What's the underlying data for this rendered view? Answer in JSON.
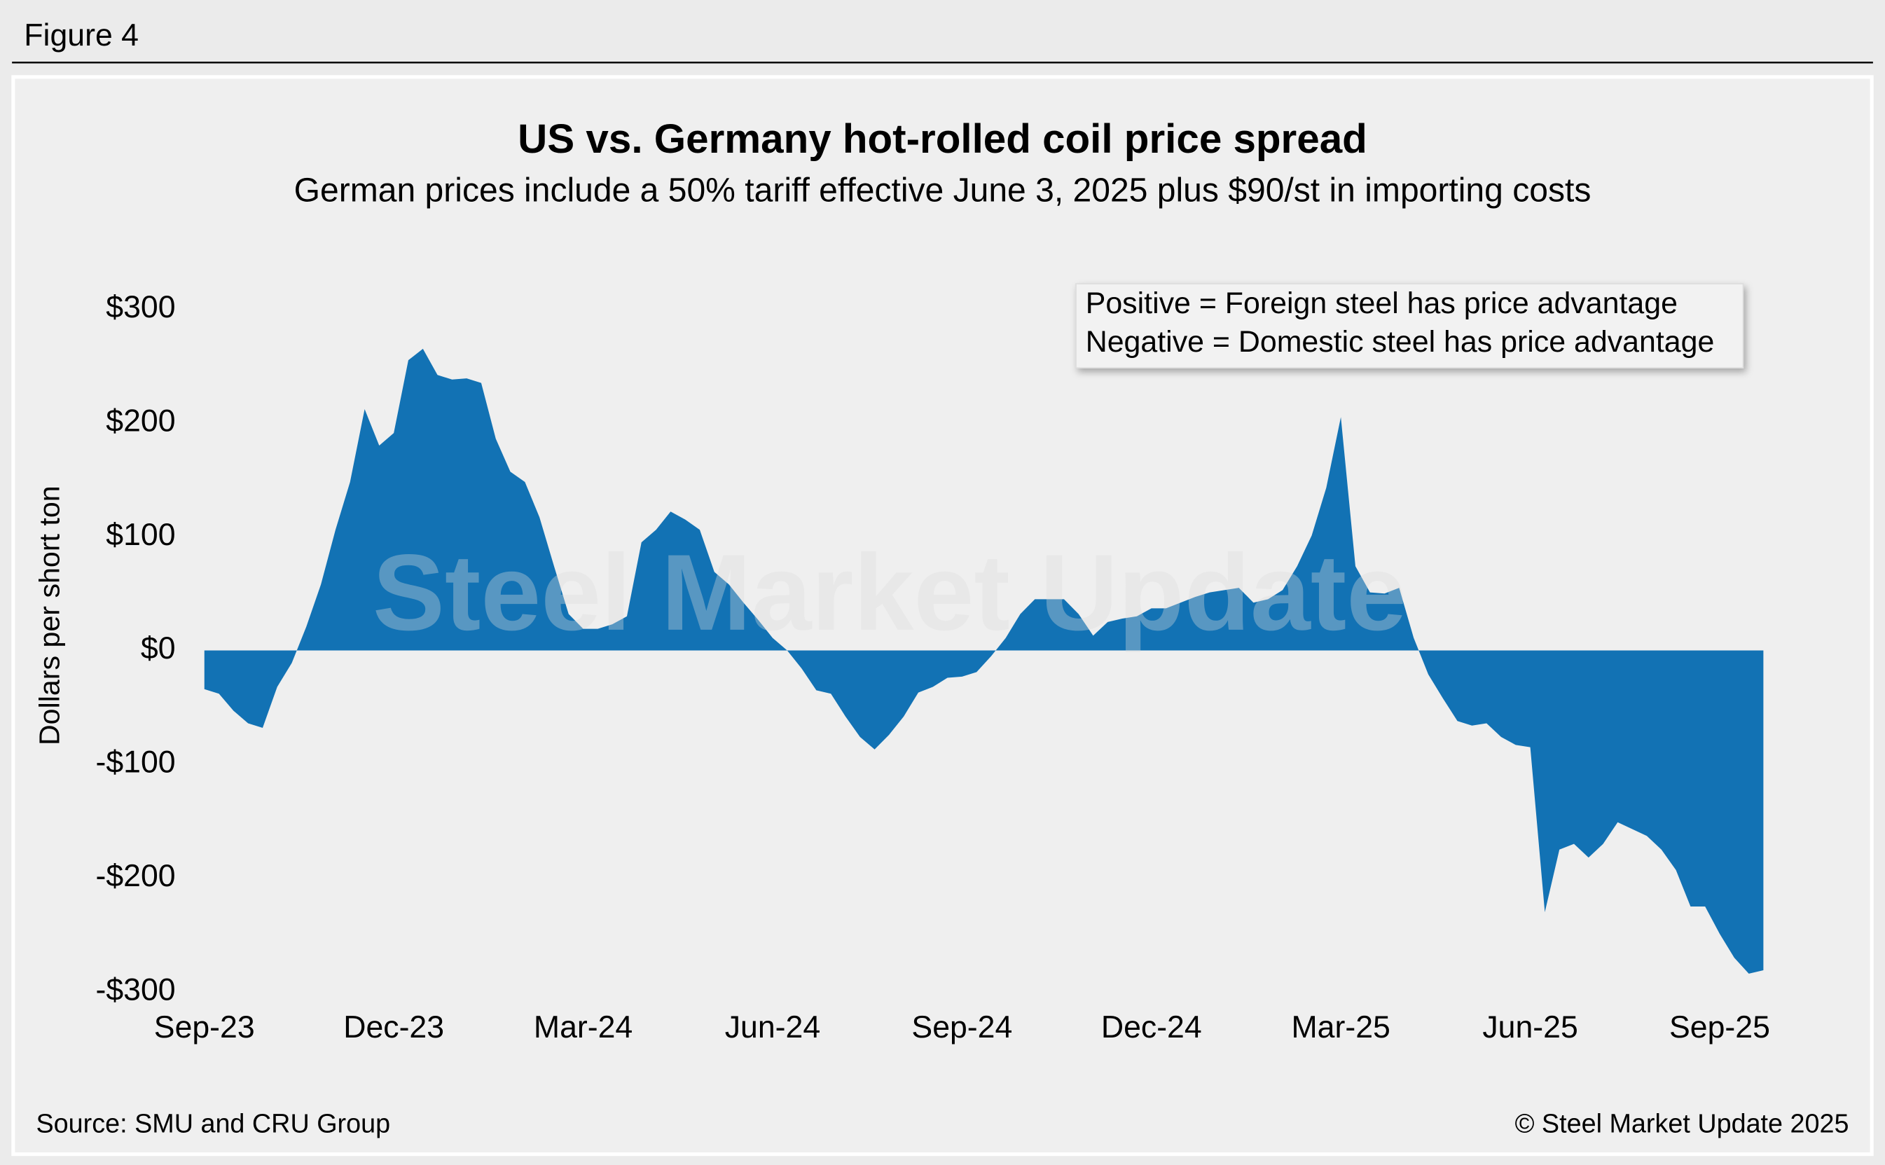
{
  "header": "Figure 4",
  "chart_data": {
    "type": "area",
    "title": "US vs. Germany hot-rolled coil price spread",
    "subtitle": "German prices include a 50% tariff effective June 3, 2025 plus $90/st in importing costs",
    "ylabel": "Dollars per short ton",
    "annotations": [
      "Positive = Foreign steel has price advantage",
      "Negative = Domestic steel has price advantage"
    ],
    "watermark": "Steel Market Update",
    "color": "#1272b4",
    "categories": [
      "Sep-23",
      null,
      null,
      null,
      null,
      null,
      null,
      null,
      null,
      null,
      null,
      null,
      null,
      "Dec-23",
      null,
      null,
      null,
      null,
      null,
      null,
      null,
      null,
      null,
      null,
      null,
      null,
      "Mar-24",
      null,
      null,
      null,
      null,
      null,
      null,
      null,
      null,
      null,
      null,
      null,
      null,
      "Jun-24",
      null,
      null,
      null,
      null,
      null,
      null,
      null,
      null,
      null,
      null,
      null,
      null,
      "Sep-24",
      null,
      null,
      null,
      null,
      null,
      null,
      null,
      null,
      null,
      null,
      null,
      null,
      "Dec-24",
      null,
      null,
      null,
      null,
      null,
      null,
      null,
      null,
      null,
      null,
      null,
      null,
      "Mar-25",
      null,
      null,
      null,
      null,
      null,
      null,
      null,
      null,
      null,
      null,
      null,
      null,
      "Jun-25",
      null,
      null,
      null,
      null,
      null,
      null,
      null,
      null,
      null,
      null,
      null,
      null,
      "Sep-25",
      null,
      null,
      null
    ],
    "values": [
      -34,
      -38,
      -53,
      -64,
      -68,
      -32,
      -11,
      21,
      58,
      106,
      148,
      212,
      180,
      191,
      255,
      265,
      242,
      238,
      239,
      235,
      186,
      157,
      148,
      117,
      74,
      32,
      19,
      19,
      23,
      30,
      95,
      106,
      122,
      115,
      106,
      69,
      58,
      42,
      27,
      11,
      0,
      -16,
      -35,
      -38,
      -58,
      -76,
      -87,
      -74,
      -58,
      -37,
      -32,
      -24,
      -23,
      -19,
      -5,
      11,
      32,
      45,
      45,
      45,
      32,
      13,
      25,
      28,
      30,
      37,
      37,
      42,
      47,
      51,
      53,
      55,
      42,
      45,
      53,
      74,
      101,
      143,
      205,
      74,
      51,
      50,
      55,
      11,
      -21,
      -42,
      -62,
      -66,
      -64,
      -76,
      -83,
      -85,
      -230,
      -175,
      -170,
      -182,
      -170,
      -151,
      -157,
      -163,
      -175,
      -193,
      -225,
      -225,
      -249,
      -270,
      -284,
      -281
    ],
    "ylim": [
      -300,
      300
    ],
    "yticks": [
      {
        "value": -300,
        "label": "-$300"
      },
      {
        "value": -200,
        "label": "-$200"
      },
      {
        "value": -100,
        "label": "-$100"
      },
      {
        "value": 0,
        "label": "$0"
      },
      {
        "value": 100,
        "label": "$100"
      },
      {
        "value": 200,
        "label": "$200"
      },
      {
        "value": 300,
        "label": "$300"
      }
    ]
  },
  "footer": {
    "source": "Source: SMU and CRU Group",
    "copyright": "© Steel Market Update 2025"
  }
}
